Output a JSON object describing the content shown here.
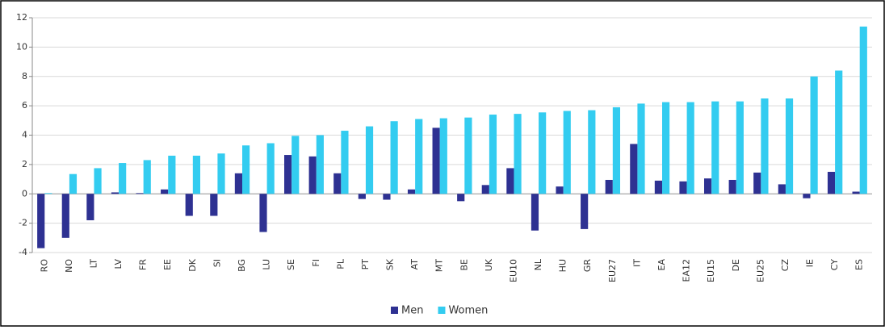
{
  "chart_data": {
    "type": "bar",
    "categories": [
      "RO",
      "NO",
      "LT",
      "LV",
      "FR",
      "EE",
      "DK",
      "SI",
      "BG",
      "LU",
      "SE",
      "FI",
      "PL",
      "PT",
      "SK",
      "AT",
      "MT",
      "BE",
      "UK",
      "EU10",
      "NL",
      "HU",
      "GR",
      "EU27",
      "IT",
      "EA",
      "EA12",
      "EU15",
      "DE",
      "EU25",
      "CZ",
      "IE",
      "CY",
      "ES"
    ],
    "series": [
      {
        "name": "Men",
        "color": "#2e3192",
        "values": [
          -3.7,
          -3.0,
          -1.8,
          0.1,
          0.05,
          0.3,
          -1.5,
          -1.5,
          1.4,
          -2.6,
          2.65,
          2.55,
          1.4,
          -0.35,
          -0.4,
          0.3,
          4.5,
          -0.5,
          0.6,
          1.75,
          -2.5,
          0.5,
          -2.4,
          0.95,
          3.4,
          0.9,
          0.85,
          1.05,
          0.95,
          1.45,
          0.65,
          -0.3,
          1.5,
          0.15
        ]
      },
      {
        "name": "Women",
        "color": "#33ccf0",
        "values": [
          0.05,
          1.35,
          1.75,
          2.1,
          2.3,
          2.6,
          2.6,
          2.75,
          3.3,
          3.45,
          3.95,
          4.0,
          4.3,
          4.6,
          4.95,
          5.1,
          5.15,
          5.2,
          5.4,
          5.45,
          5.55,
          5.65,
          5.7,
          5.9,
          6.15,
          6.25,
          6.25,
          6.3,
          6.3,
          6.5,
          6.5,
          8.0,
          8.4,
          11.4
        ]
      }
    ],
    "ylim": [
      -4,
      12
    ],
    "yticks": [
      -4,
      -2,
      0,
      2,
      4,
      6,
      8,
      10,
      12
    ],
    "grid": true,
    "legend": "bottom"
  }
}
